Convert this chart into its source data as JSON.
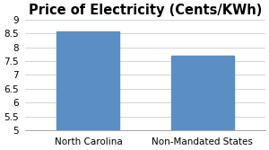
{
  "title": "Price of Electricity (Cents/KWh)",
  "categories": [
    "North Carolina",
    "Non-Mandated States"
  ],
  "values": [
    8.57,
    7.68
  ],
  "bar_color": "#5B8EC4",
  "ylim": [
    5,
    9
  ],
  "yticks": [
    5,
    5.5,
    6,
    6.5,
    7,
    7.5,
    8,
    8.5,
    9
  ],
  "bar_width": 0.55,
  "title_fontsize": 10.5,
  "tick_fontsize": 7.5,
  "xlabel_fontsize": 7.5,
  "background_color": "#ffffff",
  "grid_color": "#cccccc",
  "figsize": [
    3.0,
    1.67
  ],
  "dpi": 100
}
